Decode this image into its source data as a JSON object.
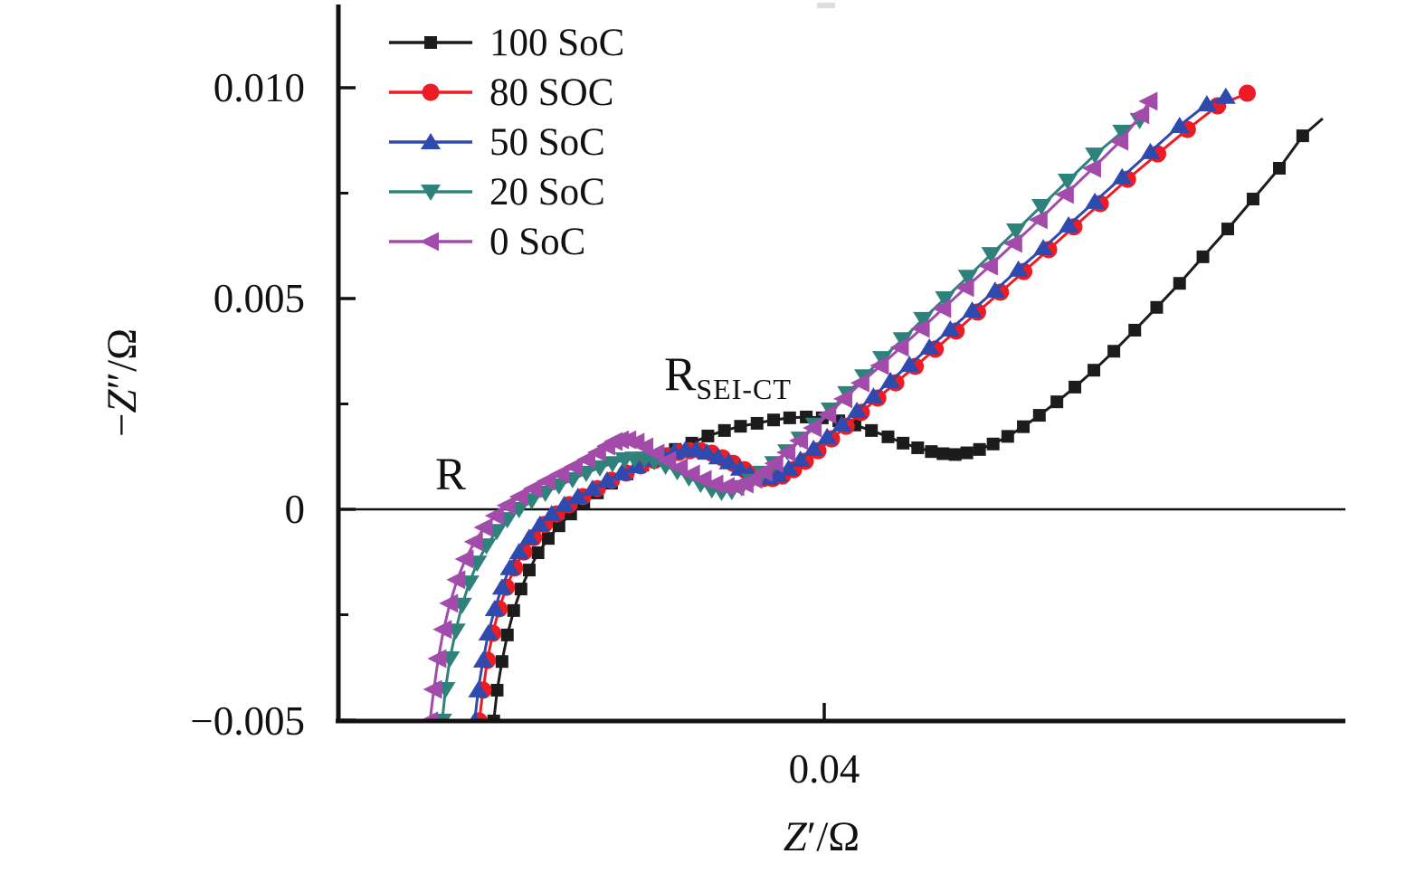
{
  "figure_background": "#ffffff",
  "chart_data": {
    "type": "scatter",
    "title": "",
    "xlabel": "Z′/Ω",
    "xlabel_parts": {
      "z": "Z",
      "rest": "′/Ω"
    },
    "ylabel": "−Z″/Ω",
    "ylabel_parts": {
      "minus": "−",
      "z": "Z",
      "rest": "″/Ω"
    },
    "xlim": [
      0.03,
      0.05
    ],
    "ylim": [
      -0.005,
      0.012
    ],
    "grid": false,
    "legend_position": "top-left",
    "x_ticks": [
      {
        "value": 0.04,
        "label": "0.04"
      }
    ],
    "y_ticks": [
      {
        "value": 0.01,
        "label": "0.010"
      },
      {
        "value": 0.005,
        "label": "0.005"
      },
      {
        "value": 0.0,
        "label": "0"
      },
      {
        "value": -0.005,
        "label": "−0.005"
      }
    ],
    "y_minor_ticks": [
      0.0075,
      0.0025,
      -0.0025
    ],
    "zero_line": 0.0,
    "annotations": [
      {
        "text": "R",
        "subscript": ""
      },
      {
        "text": "R",
        "subscript": "SEI-CT"
      }
    ],
    "series": [
      {
        "name": "100 SoC",
        "color": "#1c1c1c",
        "marker": "square",
        "points": [
          [
            0.03321,
            -0.00502
          ],
          [
            0.03328,
            -0.00429
          ],
          [
            0.03338,
            -0.00361
          ],
          [
            0.03349,
            -0.00298
          ],
          [
            0.03362,
            -0.0024
          ],
          [
            0.03377,
            -0.00189
          ],
          [
            0.03394,
            -0.00144
          ],
          [
            0.03412,
            -0.00103
          ],
          [
            0.03433,
            -0.00069
          ],
          [
            0.03455,
            -0.00039
          ],
          [
            0.03479,
            -0.00011
          ],
          [
            0.03506,
            0.00015
          ],
          [
            0.03534,
            0.00039
          ],
          [
            0.03563,
            0.00062
          ],
          [
            0.03595,
            0.00084
          ],
          [
            0.03627,
            0.00105
          ],
          [
            0.0366,
            0.00124
          ],
          [
            0.03694,
            0.00142
          ],
          [
            0.03728,
            0.00157
          ],
          [
            0.03761,
            0.00174
          ],
          [
            0.03795,
            0.00187
          ],
          [
            0.03828,
            0.00197
          ],
          [
            0.03862,
            0.00204
          ],
          [
            0.03896,
            0.00212
          ],
          [
            0.03929,
            0.00217
          ],
          [
            0.03963,
            0.00219
          ],
          [
            0.03996,
            0.00217
          ],
          [
            0.0403,
            0.0021
          ],
          [
            0.04063,
            0.002
          ],
          [
            0.04097,
            0.00187
          ],
          [
            0.04131,
            0.00172
          ],
          [
            0.04162,
            0.00157
          ],
          [
            0.04192,
            0.00146
          ],
          [
            0.0422,
            0.00137
          ],
          [
            0.04244,
            0.00132
          ],
          [
            0.04269,
            0.0013
          ],
          [
            0.04293,
            0.00134
          ],
          [
            0.04319,
            0.00142
          ],
          [
            0.04347,
            0.00155
          ],
          [
            0.04377,
            0.00173
          ],
          [
            0.04409,
            0.00196
          ],
          [
            0.04442,
            0.00223
          ],
          [
            0.04478,
            0.00255
          ],
          [
            0.04515,
            0.0029
          ],
          [
            0.04554,
            0.0033
          ],
          [
            0.04595,
            0.00375
          ],
          [
            0.04638,
            0.00425
          ],
          [
            0.04683,
            0.00479
          ],
          [
            0.0473,
            0.00536
          ],
          [
            0.04778,
            0.00599
          ],
          [
            0.04829,
            0.00665
          ],
          [
            0.04881,
            0.00736
          ],
          [
            0.04935,
            0.00809
          ],
          [
            0.04983,
            0.00886
          ]
        ],
        "extension": [
          [
            0.05024,
            0.00927
          ]
        ]
      },
      {
        "name": "80 SOC",
        "color": "#ed1c24",
        "marker": "circle",
        "points": [
          [
            0.03291,
            -0.00502
          ],
          [
            0.03299,
            -0.00429
          ],
          [
            0.03308,
            -0.00358
          ],
          [
            0.03319,
            -0.00294
          ],
          [
            0.03332,
            -0.00236
          ],
          [
            0.03347,
            -0.00185
          ],
          [
            0.03364,
            -0.00139
          ],
          [
            0.03383,
            -0.00101
          ],
          [
            0.03403,
            -0.00067
          ],
          [
            0.03425,
            -0.00036
          ],
          [
            0.0345,
            -0.00011
          ],
          [
            0.03476,
            0.00011
          ],
          [
            0.03504,
            0.0003
          ],
          [
            0.03534,
            0.00049
          ],
          [
            0.03563,
            0.00069
          ],
          [
            0.03593,
            0.00086
          ],
          [
            0.03623,
            0.00103
          ],
          [
            0.03651,
            0.00116
          ],
          [
            0.03677,
            0.00127
          ],
          [
            0.03701,
            0.00135
          ],
          [
            0.03724,
            0.00139
          ],
          [
            0.03746,
            0.00139
          ],
          [
            0.03769,
            0.00133
          ],
          [
            0.03791,
            0.00122
          ],
          [
            0.03813,
            0.00109
          ],
          [
            0.03836,
            0.00094
          ],
          [
            0.03856,
            0.00082
          ],
          [
            0.03875,
            0.00073
          ],
          [
            0.03894,
            0.00073
          ],
          [
            0.03914,
            0.00079
          ],
          [
            0.03937,
            0.00094
          ],
          [
            0.03961,
            0.00114
          ],
          [
            0.03987,
            0.00139
          ],
          [
            0.04015,
            0.00167
          ],
          [
            0.04045,
            0.00197
          ],
          [
            0.04076,
            0.0023
          ],
          [
            0.0411,
            0.00264
          ],
          [
            0.04147,
            0.003
          ],
          [
            0.04187,
            0.00339
          ],
          [
            0.04228,
            0.0038
          ],
          [
            0.04271,
            0.00423
          ],
          [
            0.04315,
            0.00468
          ],
          [
            0.04362,
            0.00515
          ],
          [
            0.0441,
            0.00564
          ],
          [
            0.04461,
            0.00616
          ],
          [
            0.04513,
            0.0067
          ],
          [
            0.04567,
            0.00725
          ],
          [
            0.04623,
            0.00783
          ],
          [
            0.04685,
            0.00843
          ],
          [
            0.04746,
            0.00901
          ],
          [
            0.04808,
            0.00957
          ],
          [
            0.04869,
            0.00987
          ]
        ]
      },
      {
        "name": "50 SoC",
        "color": "#2f4aae",
        "marker": "triangle-up",
        "points": [
          [
            0.03282,
            -0.00502
          ],
          [
            0.03289,
            -0.00429
          ],
          [
            0.03299,
            -0.00358
          ],
          [
            0.0331,
            -0.00294
          ],
          [
            0.03323,
            -0.00236
          ],
          [
            0.03338,
            -0.00185
          ],
          [
            0.03354,
            -0.00139
          ],
          [
            0.03373,
            -0.00101
          ],
          [
            0.03394,
            -0.00067
          ],
          [
            0.03416,
            -0.00036
          ],
          [
            0.0344,
            -0.00011
          ],
          [
            0.03466,
            0.00011
          ],
          [
            0.03494,
            0.0003
          ],
          [
            0.03524,
            0.00049
          ],
          [
            0.03554,
            0.00069
          ],
          [
            0.03584,
            0.00086
          ],
          [
            0.03614,
            0.00103
          ],
          [
            0.03642,
            0.00118
          ],
          [
            0.03668,
            0.00129
          ],
          [
            0.03692,
            0.00137
          ],
          [
            0.03715,
            0.00142
          ],
          [
            0.03737,
            0.00142
          ],
          [
            0.03759,
            0.00135
          ],
          [
            0.03782,
            0.00124
          ],
          [
            0.03804,
            0.00112
          ],
          [
            0.03827,
            0.00097
          ],
          [
            0.03847,
            0.00084
          ],
          [
            0.03866,
            0.00075
          ],
          [
            0.03884,
            0.00075
          ],
          [
            0.03905,
            0.00082
          ],
          [
            0.03927,
            0.00097
          ],
          [
            0.03951,
            0.00118
          ],
          [
            0.03978,
            0.00144
          ],
          [
            0.04006,
            0.00172
          ],
          [
            0.04036,
            0.00202
          ],
          [
            0.04067,
            0.00234
          ],
          [
            0.04101,
            0.00268
          ],
          [
            0.04136,
            0.00305
          ],
          [
            0.04175,
            0.00343
          ],
          [
            0.04216,
            0.00384
          ],
          [
            0.04259,
            0.00427
          ],
          [
            0.04304,
            0.00472
          ],
          [
            0.04351,
            0.00519
          ],
          [
            0.04399,
            0.00569
          ],
          [
            0.0445,
            0.0062
          ],
          [
            0.04502,
            0.00674
          ],
          [
            0.04556,
            0.0073
          ],
          [
            0.04612,
            0.00788
          ],
          [
            0.0467,
            0.00848
          ],
          [
            0.0473,
            0.0091
          ],
          [
            0.04786,
            0.00961
          ],
          [
            0.04825,
            0.00979
          ]
        ]
      },
      {
        "name": "20 SoC",
        "color": "#2e827b",
        "marker": "triangle-down",
        "points": [
          [
            0.03215,
            -0.00502
          ],
          [
            0.03222,
            -0.00427
          ],
          [
            0.03231,
            -0.00354
          ],
          [
            0.03243,
            -0.00288
          ],
          [
            0.03256,
            -0.00227
          ],
          [
            0.03271,
            -0.00174
          ],
          [
            0.03287,
            -0.00127
          ],
          [
            0.03306,
            -0.00086
          ],
          [
            0.03327,
            -0.00052
          ],
          [
            0.03349,
            -0.00024
          ],
          [
            0.03373,
            0.0
          ],
          [
            0.03399,
            0.00021
          ],
          [
            0.03427,
            0.00039
          ],
          [
            0.03455,
            0.00056
          ],
          [
            0.03483,
            0.00071
          ],
          [
            0.03511,
            0.00086
          ],
          [
            0.03539,
            0.00099
          ],
          [
            0.03565,
            0.00109
          ],
          [
            0.0359,
            0.00118
          ],
          [
            0.0361,
            0.0012
          ],
          [
            0.03631,
            0.0012
          ],
          [
            0.03651,
            0.00114
          ],
          [
            0.03674,
            0.00103
          ],
          [
            0.03698,
            0.0009
          ],
          [
            0.03722,
            0.00075
          ],
          [
            0.03746,
            0.0006
          ],
          [
            0.03769,
            0.00047
          ],
          [
            0.03789,
            0.00041
          ],
          [
            0.0381,
            0.00043
          ],
          [
            0.0383,
            0.00052
          ],
          [
            0.03851,
            0.00067
          ],
          [
            0.03873,
            0.00086
          ],
          [
            0.03897,
            0.00109
          ],
          [
            0.03924,
            0.00137
          ],
          [
            0.03951,
            0.00167
          ],
          [
            0.03981,
            0.002
          ],
          [
            0.04013,
            0.00236
          ],
          [
            0.04047,
            0.00275
          ],
          [
            0.04082,
            0.00315
          ],
          [
            0.04119,
            0.00358
          ],
          [
            0.04161,
            0.00403
          ],
          [
            0.04203,
            0.00451
          ],
          [
            0.04248,
            0.005
          ],
          [
            0.04295,
            0.00551
          ],
          [
            0.04343,
            0.00605
          ],
          [
            0.04394,
            0.00661
          ],
          [
            0.04446,
            0.00719
          ],
          [
            0.045,
            0.00779
          ],
          [
            0.04556,
            0.00841
          ],
          [
            0.04612,
            0.00895
          ],
          [
            0.04648,
            0.00923
          ]
        ]
      },
      {
        "name": "0 SoC",
        "color": "#a34bab",
        "marker": "triangle-left",
        "points": [
          [
            0.0319,
            -0.00502
          ],
          [
            0.03198,
            -0.00427
          ],
          [
            0.03207,
            -0.00354
          ],
          [
            0.03218,
            -0.00285
          ],
          [
            0.03231,
            -0.00223
          ],
          [
            0.03246,
            -0.00167
          ],
          [
            0.03263,
            -0.00118
          ],
          [
            0.03282,
            -0.00077
          ],
          [
            0.03302,
            -0.00043
          ],
          [
            0.03325,
            -0.00015
          ],
          [
            0.03349,
            9e-05
          ],
          [
            0.03375,
            0.0003
          ],
          [
            0.03403,
            0.00049
          ],
          [
            0.03431,
            0.00067
          ],
          [
            0.03459,
            0.00084
          ],
          [
            0.03487,
            0.00101
          ],
          [
            0.03513,
            0.00118
          ],
          [
            0.03535,
            0.00135
          ],
          [
            0.03554,
            0.0015
          ],
          [
            0.03569,
            0.00161
          ],
          [
            0.03582,
            0.00165
          ],
          [
            0.03597,
            0.00165
          ],
          [
            0.03614,
            0.00159
          ],
          [
            0.03632,
            0.00148
          ],
          [
            0.03655,
            0.00133
          ],
          [
            0.03679,
            0.00116
          ],
          [
            0.03703,
            0.00099
          ],
          [
            0.03728,
            0.00084
          ],
          [
            0.03752,
            0.00071
          ],
          [
            0.03776,
            0.0006
          ],
          [
            0.03799,
            0.00054
          ],
          [
            0.03819,
            0.00054
          ],
          [
            0.03838,
            0.0006
          ],
          [
            0.03856,
            0.00071
          ],
          [
            0.03877,
            0.00088
          ],
          [
            0.03899,
            0.00109
          ],
          [
            0.03924,
            0.00135
          ],
          [
            0.0395,
            0.00163
          ],
          [
            0.03978,
            0.00193
          ],
          [
            0.04008,
            0.00225
          ],
          [
            0.04041,
            0.00262
          ],
          [
            0.04076,
            0.003
          ],
          [
            0.04116,
            0.00341
          ],
          [
            0.04157,
            0.00384
          ],
          [
            0.042,
            0.00429
          ],
          [
            0.04244,
            0.00476
          ],
          [
            0.04291,
            0.00526
          ],
          [
            0.0434,
            0.00577
          ],
          [
            0.0439,
            0.00631
          ],
          [
            0.04442,
            0.00687
          ],
          [
            0.04496,
            0.00747
          ],
          [
            0.04552,
            0.00809
          ],
          [
            0.04608,
            0.00873
          ],
          [
            0.04651,
            0.00936
          ],
          [
            0.04668,
            0.00968
          ]
        ]
      }
    ]
  }
}
